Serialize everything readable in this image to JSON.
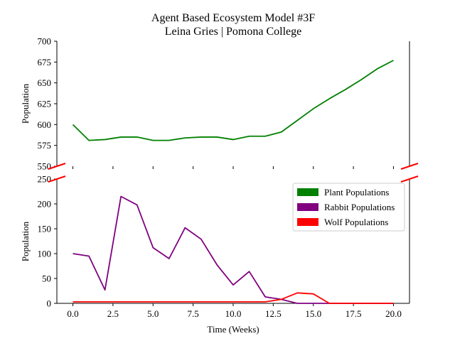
{
  "chart_data": {
    "type": "line",
    "title": "Agent Based Ecosystem Model #3F",
    "subtitle": "Leina Gries | Pomona College",
    "xlabel": "Time (Weeks)",
    "ylabel_top": "Population",
    "ylabel_bottom": "Population",
    "xlim": [
      -1,
      21
    ],
    "xticks": [
      0.0,
      2.5,
      5.0,
      7.5,
      10.0,
      12.5,
      15.0,
      17.5,
      20.0
    ],
    "xtick_labels": [
      "0.0",
      "2.5",
      "5.0",
      "7.5",
      "10.0",
      "12.5",
      "15.0",
      "17.5",
      "20.0"
    ],
    "top_ylim": [
      550,
      700
    ],
    "top_yticks": [
      550,
      575,
      600,
      625,
      650,
      675,
      700
    ],
    "bottom_ylim": [
      0,
      250
    ],
    "bottom_yticks": [
      0,
      50,
      100,
      150,
      200,
      250
    ],
    "broken_axis": true,
    "grid": false,
    "legend_position": "upper-right (bottom panel)",
    "x": [
      0,
      1,
      2,
      3,
      4,
      5,
      6,
      7,
      8,
      9,
      10,
      11,
      12,
      13,
      14,
      15,
      16,
      17,
      18,
      19,
      20
    ],
    "series": [
      {
        "name": "Plant Populations",
        "color": "#008000",
        "panel": "top",
        "values": [
          600,
          581,
          582,
          585,
          585,
          581,
          581,
          584,
          585,
          585,
          582,
          586,
          586,
          591,
          605,
          619,
          631,
          642,
          654,
          667,
          677
        ]
      },
      {
        "name": "Rabbit Populations",
        "color": "#800080",
        "panel": "bottom",
        "values": [
          100,
          95,
          27,
          215,
          198,
          112,
          90,
          152,
          129,
          77,
          37,
          64,
          13,
          8,
          0,
          0,
          0,
          0,
          0,
          0,
          0
        ]
      },
      {
        "name": "Wolf Populations",
        "color": "#ff0000",
        "panel": "bottom",
        "values": [
          3,
          3,
          3,
          3,
          3,
          3,
          3,
          3,
          3,
          3,
          3,
          3,
          3,
          8,
          21,
          19,
          0,
          0,
          0,
          0,
          0
        ]
      }
    ]
  }
}
